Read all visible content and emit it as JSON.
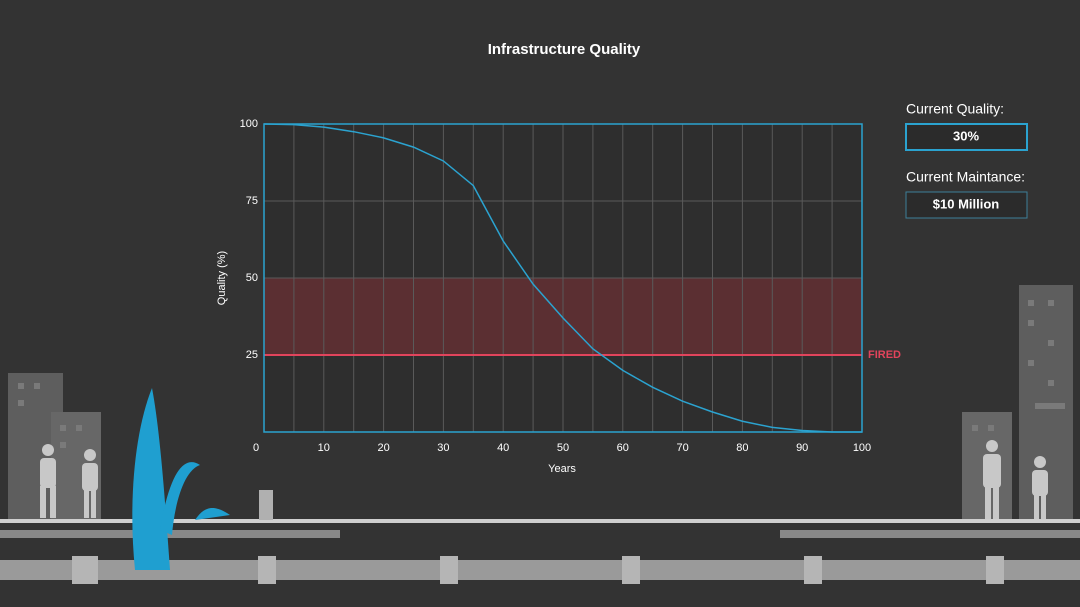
{
  "chart_data": {
    "type": "line",
    "title": "Infrastructure Quality",
    "x_label": "Years",
    "y_label": "Quality (%)",
    "x": [
      0,
      5,
      10,
      15,
      20,
      25,
      30,
      35,
      40,
      45,
      50,
      55,
      60,
      65,
      70,
      75,
      80,
      85,
      90,
      95,
      100
    ],
    "series": [
      {
        "name": "Quality",
        "color": "#2ba3d0",
        "values": [
          100,
          99.8,
          99,
          97.5,
          95.5,
          92.5,
          88,
          80,
          62,
          48,
          37,
          27,
          20,
          14.5,
          10,
          6.5,
          3.5,
          1.5,
          0.5,
          0,
          0
        ]
      }
    ],
    "xlim": [
      0,
      100
    ],
    "xticks": [
      0,
      10,
      20,
      30,
      40,
      50,
      60,
      70,
      80,
      90,
      100
    ],
    "xgrid": [
      5,
      10,
      15,
      20,
      25,
      30,
      35,
      40,
      45,
      50,
      55,
      60,
      65,
      70,
      75,
      80,
      85,
      90,
      95
    ],
    "ylim": [
      0,
      100
    ],
    "yticks": [
      25,
      50,
      75,
      100
    ],
    "band": {
      "from": 25,
      "to": 50,
      "color": "#5b2f32"
    },
    "threshold": {
      "value": 25,
      "label": "FIRED",
      "color": "#e2445c"
    }
  },
  "panels": [
    {
      "label": "Current Quality:",
      "value": "30%"
    },
    {
      "label": "Current Maintance:",
      "value": "$10 Million"
    }
  ]
}
